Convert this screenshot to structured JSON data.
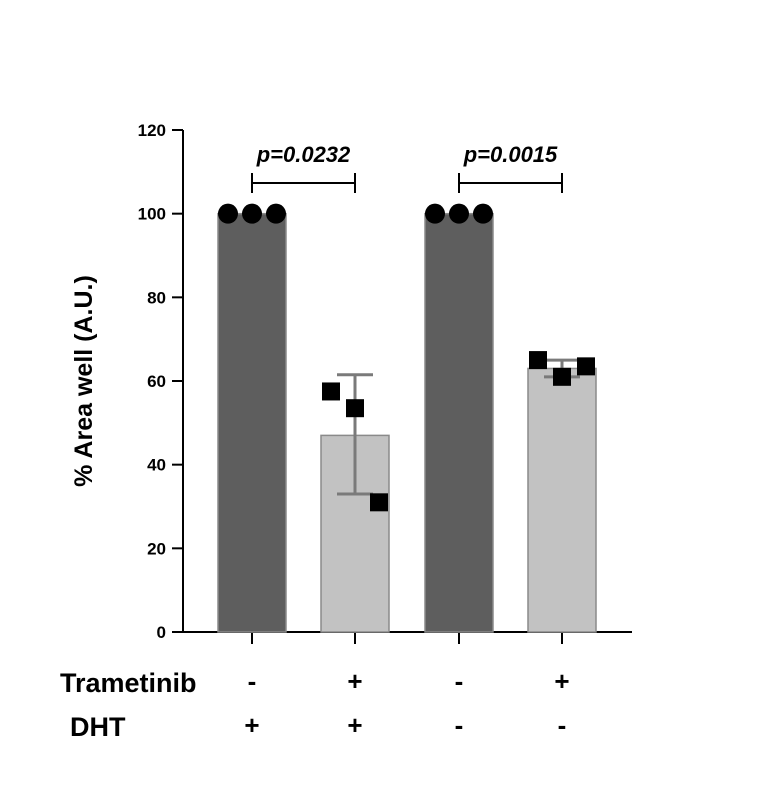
{
  "chart_data": {
    "type": "bar",
    "ylabel": "% Area well (A.U.)",
    "ylim": [
      0,
      120
    ],
    "yticks": [
      0,
      20,
      40,
      60,
      80,
      100,
      120
    ],
    "grid": false,
    "colors": {
      "dark_bar": "#5e5e5e",
      "light_bar": "#c2c2c2",
      "points": "#000000",
      "error_bar": "#7a7a7a"
    },
    "bars": [
      {
        "mean": 100,
        "error": [
          100,
          100
        ],
        "points": [
          100,
          100,
          100
        ],
        "marker": "circle",
        "color": "#5e5e5e"
      },
      {
        "mean": 47,
        "error": [
          33,
          61.5
        ],
        "points": [
          57.5,
          53.5,
          31
        ],
        "marker": "square",
        "color": "#c2c2c2"
      },
      {
        "mean": 100,
        "error": [
          100,
          100
        ],
        "points": [
          100,
          100,
          100
        ],
        "marker": "circle",
        "color": "#5e5e5e"
      },
      {
        "mean": 63,
        "error": [
          61,
          65
        ],
        "points": [
          65,
          61,
          63.5
        ],
        "marker": "square",
        "color": "#c2c2c2"
      }
    ],
    "comparisons": [
      {
        "from": 0,
        "to": 1,
        "label": "p=0.0232"
      },
      {
        "from": 2,
        "to": 3,
        "label": "p=0.0015"
      }
    ],
    "conditions": [
      {
        "name": "Trametinib",
        "values": [
          "-",
          "+",
          "-",
          "+"
        ]
      },
      {
        "name": "DHT",
        "values": [
          "+",
          "+",
          "-",
          "-"
        ]
      }
    ]
  }
}
